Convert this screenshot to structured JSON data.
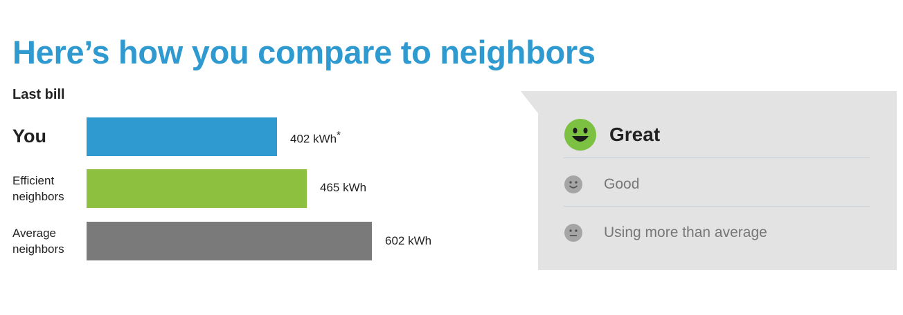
{
  "title": "Here’s how you compare to neighbors",
  "subtitle": "Last bill",
  "colors": {
    "accent": "#2f9ad0",
    "you": "#2f9ad0",
    "efficient": "#8dc03f",
    "average": "#7a7a7a",
    "great_face": "#7dc142",
    "muted_face": "#a5a5a5"
  },
  "chart_data": {
    "type": "bar",
    "orientation": "horizontal",
    "title": "Here’s how you compare to neighbors",
    "subtitle": "Last bill",
    "categories": [
      "You",
      "Efficient neighbors",
      "Average neighbors"
    ],
    "values": [
      402,
      465,
      602
    ],
    "value_labels": [
      "402 kWh",
      "465 kWh",
      "602 kWh"
    ],
    "value_footnote_mark": "*",
    "unit": "kWh",
    "grid": false
  },
  "rating": {
    "items": [
      {
        "label": "Great",
        "icon": "big-smile-face-icon",
        "active": true
      },
      {
        "label": "Good",
        "icon": "smile-face-icon",
        "active": false
      },
      {
        "label": "Using more than average",
        "icon": "neutral-face-icon",
        "active": false
      }
    ]
  }
}
